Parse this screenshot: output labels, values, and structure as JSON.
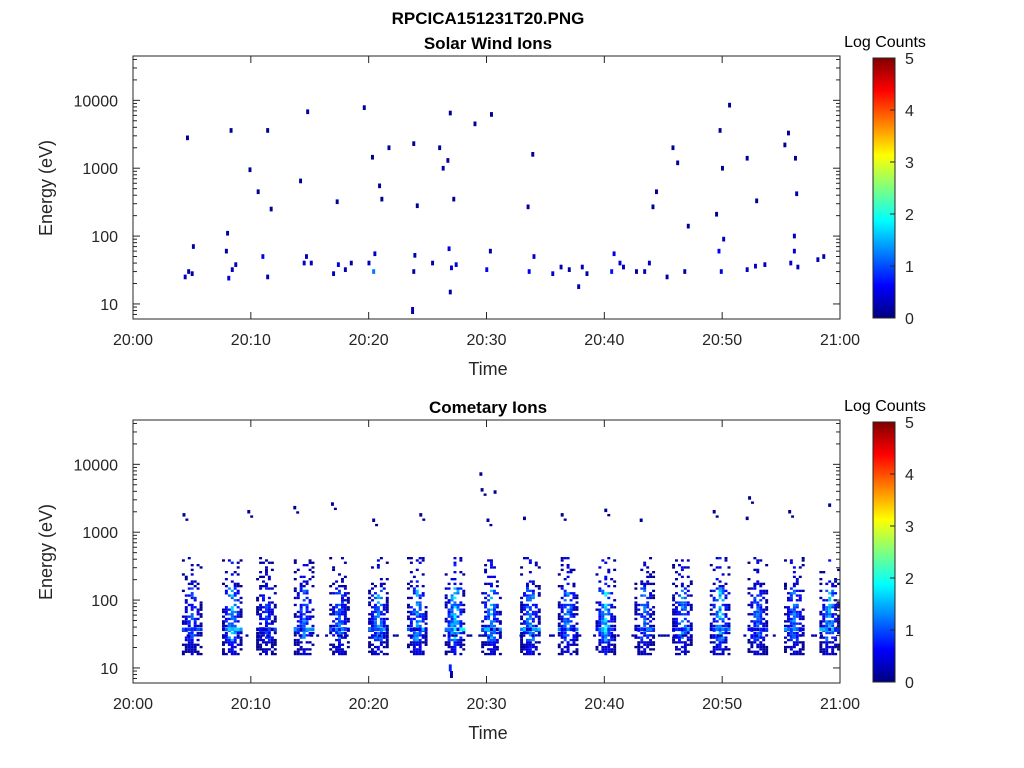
{
  "figure_title": "RPCICA151231T20.PNG",
  "colormap": [
    "#00007f",
    "#0000ff",
    "#007fff",
    "#00ffff",
    "#7fff7f",
    "#ffff00",
    "#ff7f00",
    "#ff0000",
    "#7f0000"
  ],
  "chart_data": [
    {
      "type": "heatmap",
      "title": "Solar Wind Ions",
      "xlabel": "Time",
      "ylabel": "Energy (eV)",
      "x_ticks": [
        "20:00",
        "20:10",
        "20:20",
        "20:30",
        "20:40",
        "20:50",
        "21:00"
      ],
      "x_range_minutes": [
        0,
        60
      ],
      "y_scale": "log",
      "y_range_eV": [
        6,
        45000
      ],
      "y_ticks": [
        "10",
        "100",
        "1000",
        "10000"
      ],
      "colorbar": {
        "label": "Log Counts",
        "ticks": [
          "0",
          "1",
          "2",
          "3",
          "4",
          "5"
        ],
        "range": [
          0,
          5
        ]
      },
      "pixels": [
        [
          4.3,
          25,
          0.3,
          2
        ],
        [
          4.6,
          30,
          0.2
        ],
        [
          4.9,
          28,
          0.2
        ],
        [
          5.0,
          70,
          0.2
        ],
        [
          4.5,
          2800,
          0.1
        ],
        [
          8.0,
          24,
          0.4
        ],
        [
          8.3,
          32,
          0.3
        ],
        [
          8.6,
          38,
          0.3
        ],
        [
          7.8,
          60,
          0.2
        ],
        [
          7.9,
          110,
          0.2
        ],
        [
          8.2,
          3600,
          0.1
        ],
        [
          10.9,
          50,
          0.5
        ],
        [
          11.3,
          25,
          0.3
        ],
        [
          10.5,
          450,
          0.1
        ],
        [
          9.8,
          950,
          0.1
        ],
        [
          11.6,
          250,
          0.1
        ],
        [
          11.3,
          3600,
          0.1
        ],
        [
          14.4,
          40,
          0.4
        ],
        [
          14.6,
          50,
          0.3
        ],
        [
          15.0,
          40,
          0.3
        ],
        [
          14.1,
          650,
          0.1
        ],
        [
          14.7,
          6800,
          0.2
        ],
        [
          16.9,
          28,
          0.3
        ],
        [
          17.3,
          38,
          0.5
        ],
        [
          17.9,
          32,
          0.3
        ],
        [
          18.4,
          40,
          0.2
        ],
        [
          17.2,
          320,
          0.1
        ],
        [
          20.3,
          30,
          1.2,
          2
        ],
        [
          19.9,
          40,
          0.3
        ],
        [
          20.4,
          55,
          0.3
        ],
        [
          20.2,
          1450,
          0.1
        ],
        [
          20.8,
          550,
          0.1
        ],
        [
          21.0,
          350,
          0.1
        ],
        [
          19.5,
          7800,
          0.1
        ],
        [
          21.6,
          2000,
          0.1
        ],
        [
          23.6,
          8,
          0.2,
          3
        ],
        [
          23.7,
          30,
          0.2
        ],
        [
          23.8,
          52,
          0.3
        ],
        [
          24.0,
          280,
          0.1
        ],
        [
          23.7,
          2300,
          0.1
        ],
        [
          26.9,
          34,
          0.4
        ],
        [
          27.3,
          38,
          0.4
        ],
        [
          26.7,
          65,
          0.5
        ],
        [
          26.8,
          15,
          0.2
        ],
        [
          26.6,
          1300,
          0.2
        ],
        [
          26.8,
          6500,
          0.1
        ],
        [
          27.1,
          350,
          0.1
        ],
        [
          25.9,
          2000,
          0.1
        ],
        [
          26.2,
          1000,
          0.2
        ],
        [
          25.3,
          40,
          0.2
        ],
        [
          29.9,
          32,
          0.6
        ],
        [
          30.2,
          60,
          0.2
        ],
        [
          28.9,
          4500,
          0.1
        ],
        [
          30.3,
          6200,
          0.1
        ],
        [
          33.5,
          30,
          0.6
        ],
        [
          33.9,
          50,
          0.4
        ],
        [
          33.4,
          270,
          0.2
        ],
        [
          33.8,
          1600,
          0.1
        ],
        [
          35.5,
          28,
          0.4
        ],
        [
          36.2,
          35,
          0.3
        ],
        [
          36.9,
          32,
          0.2
        ],
        [
          38.0,
          35,
          0.3
        ],
        [
          38.4,
          28,
          0.2
        ],
        [
          37.7,
          18,
          0.2
        ],
        [
          40.5,
          30,
          0.7
        ],
        [
          40.7,
          55,
          0.5
        ],
        [
          41.2,
          40,
          0.4
        ],
        [
          41.5,
          35,
          0.3
        ],
        [
          43.3,
          30,
          0.3
        ],
        [
          43.7,
          40,
          0.3
        ],
        [
          44.3,
          450,
          0.1
        ],
        [
          44.0,
          270,
          0.1
        ],
        [
          42.6,
          30,
          0.2
        ],
        [
          46.7,
          30,
          0.2
        ],
        [
          47.0,
          140,
          0.1
        ],
        [
          45.7,
          2000,
          0.1
        ],
        [
          46.1,
          1200,
          0.1
        ],
        [
          45.2,
          25,
          0.2
        ],
        [
          49.8,
          30,
          0.5
        ],
        [
          49.6,
          60,
          0.6
        ],
        [
          49.9,
          1000,
          0.1
        ],
        [
          49.7,
          3600,
          0.1
        ],
        [
          50.5,
          8500,
          0.1
        ],
        [
          49.4,
          210,
          0.1
        ],
        [
          50.0,
          90,
          0.3
        ],
        [
          52.0,
          32,
          0.3
        ],
        [
          52.7,
          36,
          0.4
        ],
        [
          53.5,
          38,
          0.3
        ],
        [
          52.0,
          1400,
          0.1
        ],
        [
          52.8,
          330,
          0.1
        ],
        [
          55.7,
          40,
          0.4
        ],
        [
          56.0,
          60,
          0.4
        ],
        [
          56.3,
          35,
          0.3
        ],
        [
          56.0,
          100,
          0.3
        ],
        [
          56.2,
          420,
          0.2
        ],
        [
          55.5,
          3300,
          0.1
        ],
        [
          55.2,
          2200,
          0.1
        ],
        [
          56.1,
          1400,
          0.1
        ],
        [
          58.0,
          45,
          0.3
        ],
        [
          58.5,
          50,
          0.2
        ]
      ]
    },
    {
      "type": "heatmap",
      "title": "Cometary Ions",
      "xlabel": "Time",
      "ylabel": "Energy (eV)",
      "x_ticks": [
        "20:00",
        "20:10",
        "20:20",
        "20:30",
        "20:40",
        "20:50",
        "21:00"
      ],
      "x_range_minutes": [
        0,
        60
      ],
      "y_scale": "log",
      "y_range_eV": [
        6,
        45000
      ],
      "y_ticks": [
        "10",
        "100",
        "1000",
        "10000"
      ],
      "colorbar": {
        "label": "Log Counts",
        "ticks": [
          "0",
          "1",
          "2",
          "3",
          "4",
          "5"
        ],
        "range": [
          0,
          5
        ]
      },
      "bursts_minutes": [
        4.9,
        8.3,
        11.2,
        14.4,
        17.4,
        20.7,
        24.0,
        27.2,
        30.3,
        33.6,
        36.8,
        40.0,
        43.3,
        46.5,
        49.7,
        52.9,
        56.0,
        59.0
      ],
      "burst_peak_log_counts": [
        1.1,
        1.7,
        1.0,
        1.4,
        1.3,
        1.5,
        1.6,
        1.9,
        1.6,
        1.6,
        1.5,
        1.9,
        1.3,
        1.5,
        1.8,
        1.3,
        1.4,
        1.6
      ],
      "high_energy_points": [
        [
          4.2,
          1800
        ],
        [
          9.7,
          2000
        ],
        [
          13.6,
          2300
        ],
        [
          16.8,
          2600
        ],
        [
          20.3,
          1500
        ],
        [
          24.3,
          1800
        ],
        [
          29.4,
          7200
        ],
        [
          29.5,
          4200
        ],
        [
          30.0,
          1500
        ],
        [
          30.6,
          3900
        ],
        [
          33.1,
          1600
        ],
        [
          36.3,
          1800
        ],
        [
          40.0,
          2100
        ],
        [
          43.0,
          1500
        ],
        [
          49.2,
          2000
        ],
        [
          52.2,
          3200
        ],
        [
          52.0,
          1600
        ],
        [
          55.6,
          2000
        ],
        [
          59.0,
          2500
        ]
      ]
    }
  ]
}
